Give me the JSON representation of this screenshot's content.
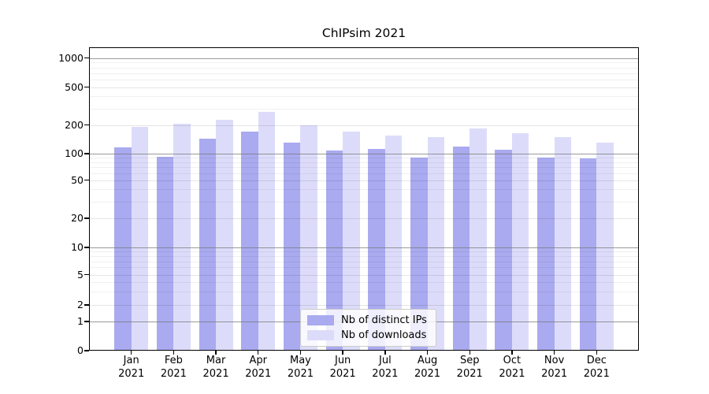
{
  "chart_data": {
    "type": "bar",
    "title": "ChIPsim 2021",
    "categories": [
      "Jan",
      "Feb",
      "Mar",
      "Apr",
      "May",
      "Jun",
      "Jul",
      "Aug",
      "Sep",
      "Oct",
      "Nov",
      "Dec"
    ],
    "x_year": "2021",
    "series": [
      {
        "name": "Nb of distinct IPs",
        "color": "#a9aaef",
        "values": [
          117,
          92,
          145,
          172,
          131,
          107,
          112,
          90,
          119,
          109,
          91,
          89
        ]
      },
      {
        "name": "Nb of downloads",
        "color": "#dcdcfa",
        "values": [
          192,
          208,
          227,
          275,
          200,
          172,
          155,
          150,
          185,
          165,
          149,
          131
        ]
      }
    ],
    "xlabel": "",
    "ylabel": "",
    "y_ticks": [
      0,
      1,
      2,
      5,
      10,
      20,
      50,
      100,
      200,
      500,
      1000
    ],
    "yscale": "log-like with 0 baseline",
    "ylim": [
      0,
      1000
    ],
    "grid": true,
    "legend_position": "inside bottom-center"
  }
}
